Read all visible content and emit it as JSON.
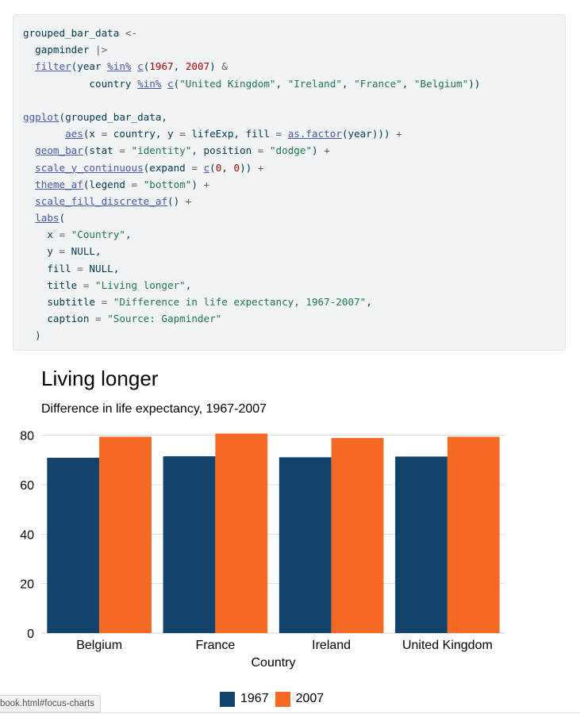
{
  "code": {
    "lines": [
      [
        [
          "kw",
          "grouped_bar_data "
        ],
        [
          "op",
          "<-"
        ]
      ],
      [
        [
          "kw",
          "  gapminder "
        ],
        [
          "op",
          "|>"
        ]
      ],
      [
        [
          "kw",
          "  "
        ],
        [
          "fn",
          "filter"
        ],
        [
          "kw",
          "(year "
        ],
        [
          "fn",
          "%in%"
        ],
        [
          "kw",
          " "
        ],
        [
          "fn",
          "c"
        ],
        [
          "kw",
          "("
        ],
        [
          "num",
          "1967"
        ],
        [
          "kw",
          ", "
        ],
        [
          "num",
          "2007"
        ],
        [
          "kw",
          ") "
        ],
        [
          "op",
          "&"
        ]
      ],
      [
        [
          "kw",
          "           country "
        ],
        [
          "fn",
          "%in%"
        ],
        [
          "kw",
          " "
        ],
        [
          "fn",
          "c"
        ],
        [
          "kw",
          "("
        ],
        [
          "str",
          "\"United Kingdom\""
        ],
        [
          "kw",
          ", "
        ],
        [
          "str",
          "\"Ireland\""
        ],
        [
          "kw",
          ", "
        ],
        [
          "str",
          "\"France\""
        ],
        [
          "kw",
          ", "
        ],
        [
          "str",
          "\"Belgium\""
        ],
        [
          "kw",
          "))"
        ]
      ],
      [
        [
          "kw",
          ""
        ]
      ],
      [
        [
          "fn",
          "ggplot"
        ],
        [
          "kw",
          "(grouped_bar_data,"
        ]
      ],
      [
        [
          "kw",
          "       "
        ],
        [
          "fn",
          "aes"
        ],
        [
          "kw",
          "(x "
        ],
        [
          "op",
          "="
        ],
        [
          "kw",
          " country, y "
        ],
        [
          "op",
          "="
        ],
        [
          "kw",
          " lifeExp, fill "
        ],
        [
          "op",
          "="
        ],
        [
          "kw",
          " "
        ],
        [
          "fn",
          "as.factor"
        ],
        [
          "kw",
          "(year))) "
        ],
        [
          "op",
          "+"
        ]
      ],
      [
        [
          "kw",
          "  "
        ],
        [
          "fn",
          "geom_bar"
        ],
        [
          "kw",
          "(stat "
        ],
        [
          "op",
          "="
        ],
        [
          "kw",
          " "
        ],
        [
          "str",
          "\"identity\""
        ],
        [
          "kw",
          ", position "
        ],
        [
          "op",
          "="
        ],
        [
          "kw",
          " "
        ],
        [
          "str",
          "\"dodge\""
        ],
        [
          "kw",
          ") "
        ],
        [
          "op",
          "+"
        ]
      ],
      [
        [
          "kw",
          "  "
        ],
        [
          "fn",
          "scale_y_continuous"
        ],
        [
          "kw",
          "(expand "
        ],
        [
          "op",
          "="
        ],
        [
          "kw",
          " "
        ],
        [
          "fn",
          "c"
        ],
        [
          "kw",
          "("
        ],
        [
          "num",
          "0"
        ],
        [
          "kw",
          ", "
        ],
        [
          "num",
          "0"
        ],
        [
          "kw",
          ")) "
        ],
        [
          "op",
          "+"
        ]
      ],
      [
        [
          "kw",
          "  "
        ],
        [
          "fn",
          "theme_af"
        ],
        [
          "kw",
          "(legend "
        ],
        [
          "op",
          "="
        ],
        [
          "kw",
          " "
        ],
        [
          "str",
          "\"bottom\""
        ],
        [
          "kw",
          ") "
        ],
        [
          "op",
          "+"
        ]
      ],
      [
        [
          "kw",
          "  "
        ],
        [
          "fn",
          "scale_fill_discrete_af"
        ],
        [
          "kw",
          "() "
        ],
        [
          "op",
          "+"
        ]
      ],
      [
        [
          "kw",
          "  "
        ],
        [
          "fn",
          "labs"
        ],
        [
          "kw",
          "("
        ]
      ],
      [
        [
          "kw",
          "    x "
        ],
        [
          "op",
          "="
        ],
        [
          "kw",
          " "
        ],
        [
          "str",
          "\"Country\""
        ],
        [
          "kw",
          ","
        ]
      ],
      [
        [
          "kw",
          "    y "
        ],
        [
          "op",
          "="
        ],
        [
          "kw",
          " NULL,"
        ]
      ],
      [
        [
          "kw",
          "    fill "
        ],
        [
          "op",
          "="
        ],
        [
          "kw",
          " NULL,"
        ]
      ],
      [
        [
          "kw",
          "    title "
        ],
        [
          "op",
          "="
        ],
        [
          "kw",
          " "
        ],
        [
          "str",
          "\"Living longer\""
        ],
        [
          "kw",
          ","
        ]
      ],
      [
        [
          "kw",
          "    subtitle "
        ],
        [
          "op",
          "="
        ],
        [
          "kw",
          " "
        ],
        [
          "str",
          "\"Difference in life expectancy, 1967-2007\""
        ],
        [
          "kw",
          ","
        ]
      ],
      [
        [
          "kw",
          "    caption "
        ],
        [
          "op",
          "="
        ],
        [
          "kw",
          " "
        ],
        [
          "str",
          "\"Source: Gapminder\""
        ]
      ],
      [
        [
          "kw",
          "  )"
        ]
      ]
    ]
  },
  "chart_data": {
    "type": "bar",
    "title": "Living longer",
    "subtitle": "Difference in life expectancy, 1967-2007",
    "xlabel": "Country",
    "ylabel": "",
    "categories": [
      "Belgium",
      "France",
      "Ireland",
      "United Kingdom"
    ],
    "series": [
      {
        "name": "1967",
        "color": "#12436d",
        "values": [
          70.9,
          71.5,
          71.1,
          71.4
        ]
      },
      {
        "name": "2007",
        "color": "#f46a25",
        "values": [
          79.4,
          80.7,
          78.9,
          79.4
        ]
      }
    ],
    "ylim": [
      0,
      81.5
    ],
    "yticks": [
      0,
      20,
      40,
      60,
      80
    ],
    "grid": "horizontal",
    "legend_position": "bottom"
  },
  "status_bar": {
    "url_fragment": "book.html#focus-charts"
  }
}
